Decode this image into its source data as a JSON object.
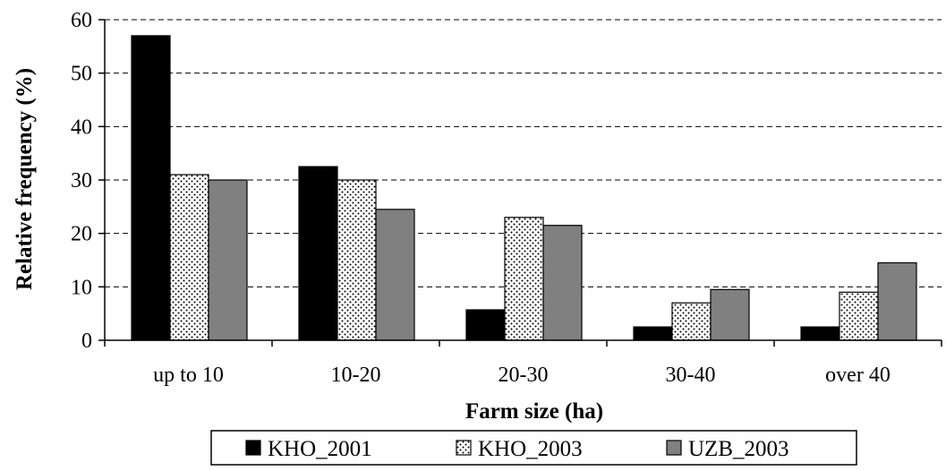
{
  "chart_data": {
    "type": "bar",
    "title": "",
    "xlabel": "Farm size (ha)",
    "ylabel": "Relative frequency (%)",
    "categories": [
      "up to 10",
      "10-20",
      "20-30",
      "30-40",
      "over 40"
    ],
    "ylim": [
      0,
      60
    ],
    "yticks": [
      0,
      10,
      20,
      30,
      40,
      50,
      60
    ],
    "grid": "horizontal dashed",
    "legend_position": "bottom",
    "series": [
      {
        "name": "KHO_2001",
        "values": [
          57,
          32.5,
          5.7,
          2.5,
          2.5
        ],
        "style": "solid",
        "color": "#000000"
      },
      {
        "name": "KHO_2003",
        "values": [
          31,
          30,
          23,
          7,
          9
        ],
        "style": "dotted",
        "color": "#ffffff"
      },
      {
        "name": "UZB_2003",
        "values": [
          30,
          24.5,
          21.5,
          9.5,
          14.5
        ],
        "style": "solid",
        "color": "#808080"
      }
    ]
  }
}
